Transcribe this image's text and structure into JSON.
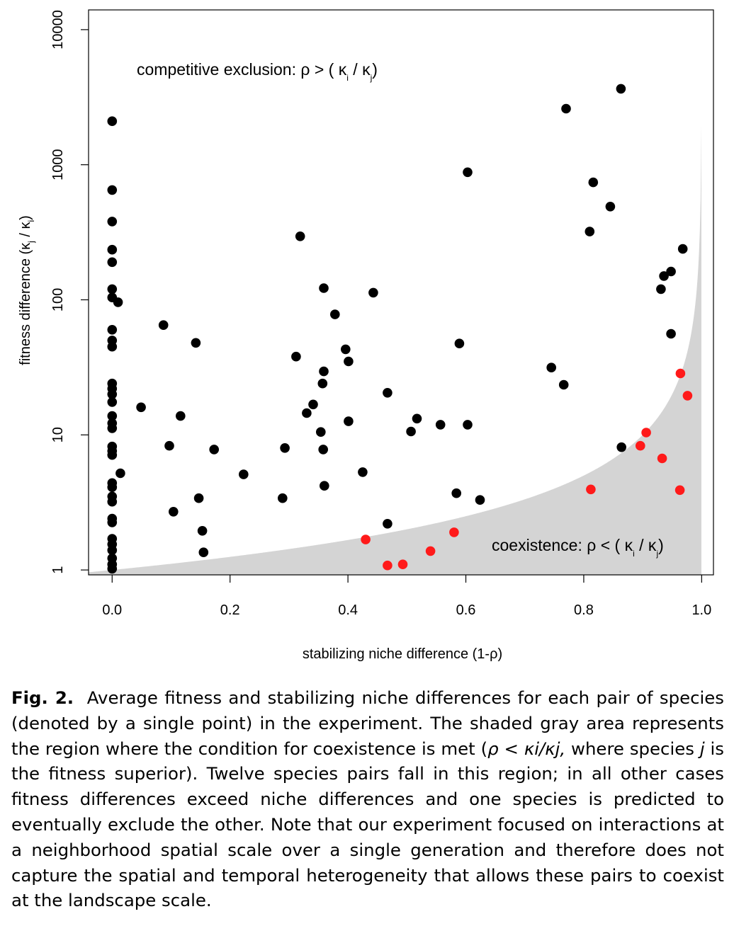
{
  "chart_data": {
    "type": "scatter",
    "xlabel": "stabilizing niche difference (1-ρ)",
    "ylabel": {
      "main": "fitness difference (κ",
      "sub1": "j",
      "sep": " / κ",
      "sub2": "i",
      "close": ")"
    },
    "x_ticks": [
      "0.0",
      "0.2",
      "0.4",
      "0.6",
      "0.8",
      "1.0"
    ],
    "x_tick_values": [
      0,
      0.2,
      0.4,
      0.6,
      0.8,
      1.0
    ],
    "y_ticks": [
      "1",
      "10",
      "100",
      "1000",
      "10000"
    ],
    "y_tick_values": [
      1,
      10,
      100,
      1000,
      10000
    ],
    "xlim": [
      -0.04,
      1.02
    ],
    "ylim": [
      0.92,
      14000
    ],
    "y_scale": "log",
    "shaded_region": "coexistence region below y = 1/(1-x)",
    "shade_color": "#d4d4d4",
    "annotations": {
      "exclusion": {
        "pre": "competitive exclusion:  ρ > ( κ",
        "s1": "i",
        "mid": " / κ",
        "s2": "j",
        "post": ")"
      },
      "coexistence": {
        "pre": "coexistence:  ρ < ( κ",
        "s1": "i",
        "mid": " / κ",
        "s2": "j",
        "post": ")"
      }
    },
    "series": [
      {
        "color": "#000000",
        "points": [
          [
            0.0,
            2100
          ],
          [
            0.0,
            650
          ],
          [
            0.0,
            380
          ],
          [
            0.0,
            235
          ],
          [
            0.0,
            190
          ],
          [
            0.0,
            120
          ],
          [
            0.0,
            104
          ],
          [
            0.01,
            96
          ],
          [
            0.0,
            60
          ],
          [
            0.0,
            50
          ],
          [
            0.0,
            45
          ],
          [
            0.0,
            24
          ],
          [
            0.0,
            22
          ],
          [
            0.0,
            20
          ],
          [
            0.0,
            17.5
          ],
          [
            0.0,
            13.8
          ],
          [
            0.0,
            12.2
          ],
          [
            0.0,
            11.2
          ],
          [
            0.0,
            8.2
          ],
          [
            0.0,
            7.6
          ],
          [
            0.0,
            7.1
          ],
          [
            0.014,
            5.2
          ],
          [
            0.0,
            4.4
          ],
          [
            0.0,
            4.1
          ],
          [
            0.0,
            3.5
          ],
          [
            0.0,
            3.2
          ],
          [
            0.0,
            2.4
          ],
          [
            0.0,
            2.25
          ],
          [
            0.0,
            1.7
          ],
          [
            0.0,
            1.55
          ],
          [
            0.0,
            1.4
          ],
          [
            0.0,
            1.22
          ],
          [
            0.0,
            1.1
          ],
          [
            0.0,
            1.02
          ],
          [
            0.049,
            16
          ],
          [
            0.087,
            65
          ],
          [
            0.097,
            8.3
          ],
          [
            0.104,
            2.7
          ],
          [
            0.116,
            13.8
          ],
          [
            0.142,
            48
          ],
          [
            0.147,
            3.4
          ],
          [
            0.153,
            1.95
          ],
          [
            0.155,
            1.35
          ],
          [
            0.173,
            7.8
          ],
          [
            0.223,
            5.1
          ],
          [
            0.289,
            3.4
          ],
          [
            0.293,
            8.0
          ],
          [
            0.312,
            38
          ],
          [
            0.319,
            295
          ],
          [
            0.33,
            14.5
          ],
          [
            0.341,
            16.8
          ],
          [
            0.354,
            10.5
          ],
          [
            0.357,
            24
          ],
          [
            0.358,
            7.8
          ],
          [
            0.359,
            29.5
          ],
          [
            0.36,
            4.2
          ],
          [
            0.359,
            122
          ],
          [
            0.378,
            78
          ],
          [
            0.396,
            43
          ],
          [
            0.401,
            35
          ],
          [
            0.401,
            12.6
          ],
          [
            0.425,
            5.3
          ],
          [
            0.443,
            113
          ],
          [
            0.467,
            20.5
          ],
          [
            0.467,
            2.2
          ],
          [
            0.507,
            10.6
          ],
          [
            0.517,
            13.2
          ],
          [
            0.557,
            11.9
          ],
          [
            0.584,
            3.7
          ],
          [
            0.589,
            47.5
          ],
          [
            0.603,
            880
          ],
          [
            0.603,
            11.9
          ],
          [
            0.624,
            3.3
          ],
          [
            0.745,
            31.5
          ],
          [
            0.766,
            23.5
          ],
          [
            0.77,
            2600
          ],
          [
            0.81,
            320
          ],
          [
            0.816,
            740
          ],
          [
            0.845,
            490
          ],
          [
            0.863,
            3650
          ],
          [
            0.864,
            8.1
          ],
          [
            0.931,
            120
          ],
          [
            0.936,
            150
          ],
          [
            0.948,
            162
          ],
          [
            0.948,
            56
          ],
          [
            0.968,
            238
          ]
        ]
      },
      {
        "color": "#ff1a1a",
        "points": [
          [
            0.43,
            1.68
          ],
          [
            0.467,
            1.08
          ],
          [
            0.493,
            1.1
          ],
          [
            0.54,
            1.38
          ],
          [
            0.58,
            1.9
          ],
          [
            0.812,
            3.95
          ],
          [
            0.896,
            8.3
          ],
          [
            0.906,
            10.4
          ],
          [
            0.933,
            6.7
          ],
          [
            0.963,
            3.9
          ],
          [
            0.964,
            28.5
          ],
          [
            0.976,
            19.5
          ]
        ]
      }
    ]
  },
  "caption": {
    "label": "Fig. 2.",
    "text_1": "Average fitness and stabilizing niche differences for each pair of species (denoted by a single point) in the experiment. The shaded gray area represents the region where the condition for coexistence is met (",
    "formula": "ρ < κi/κj,",
    "text_2": " where species ",
    "var_j": "j",
    "text_3": " is the fitness superior). Twelve species pairs fall in this region; in all other cases fitness differences exceed niche differences and one species is predicted to eventually exclude the other. Note that our experiment focused on interactions at a neighborhood spatial scale over a single generation and therefore does not capture the spatial and temporal heterogeneity that allows these pairs to coexist at the landscape scale."
  }
}
